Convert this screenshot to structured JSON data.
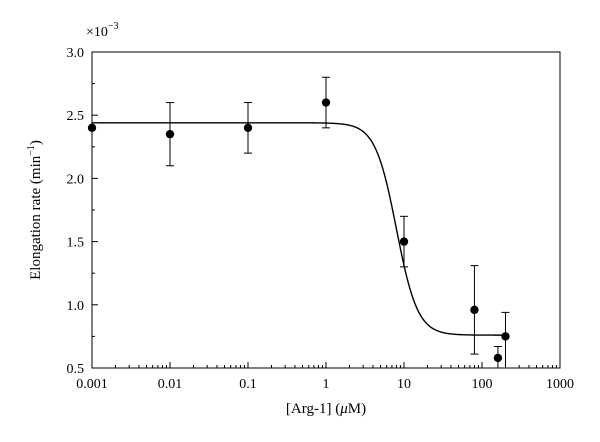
{
  "chart_data": {
    "type": "scatter",
    "title": "",
    "xlabel_main": "[Arg-1] (",
    "xlabel_unit_symbol": "μ",
    "xlabel_unit_rest": "M)",
    "ylabel": "Elongation rate (min",
    "ylabel_sup": "−1",
    "ylabel_close": ")",
    "y_multiplier_base": "×10",
    "y_multiplier_exp": "−3",
    "x_scale": "log",
    "xlim": [
      0.001,
      1000
    ],
    "ylim": [
      0.5,
      3.0
    ],
    "x_ticks": [
      0.001,
      0.01,
      0.1,
      1,
      10,
      100,
      1000
    ],
    "x_tick_labels": [
      "0.001",
      "0.01",
      "0.1",
      "1",
      "10",
      "100",
      "1000"
    ],
    "y_ticks": [
      0.5,
      1.0,
      1.5,
      2.0,
      2.5,
      3.0
    ],
    "y_tick_labels": [
      "0.5",
      "1.0",
      "1.5",
      "2.0",
      "2.5",
      "3.0"
    ],
    "grid": false,
    "series": [
      {
        "points": [
          {
            "x": 0.001,
            "y": 2.4,
            "err_low": 2.4,
            "err_high": 2.4
          },
          {
            "x": 0.01,
            "y": 2.35,
            "err_low": 2.1,
            "err_high": 2.6
          },
          {
            "x": 0.1,
            "y": 2.4,
            "err_low": 2.2,
            "err_high": 2.6
          },
          {
            "x": 1,
            "y": 2.6,
            "err_low": 2.4,
            "err_high": 2.8
          },
          {
            "x": 10,
            "y": 1.5,
            "err_low": 1.3,
            "err_high": 1.7
          },
          {
            "x": 80,
            "y": 0.96,
            "err_low": 0.61,
            "err_high": 1.31
          },
          {
            "x": 160,
            "y": 0.58,
            "err_low": 0.5,
            "err_high": 0.67
          },
          {
            "x": 200,
            "y": 0.75,
            "err_low": 0.5,
            "err_high": 0.94
          }
        ]
      }
    ],
    "fit_curve": {
      "model": "sigmoid",
      "top": 2.44,
      "bottom": 0.76,
      "ec50": 8,
      "hill": 3.2
    }
  }
}
